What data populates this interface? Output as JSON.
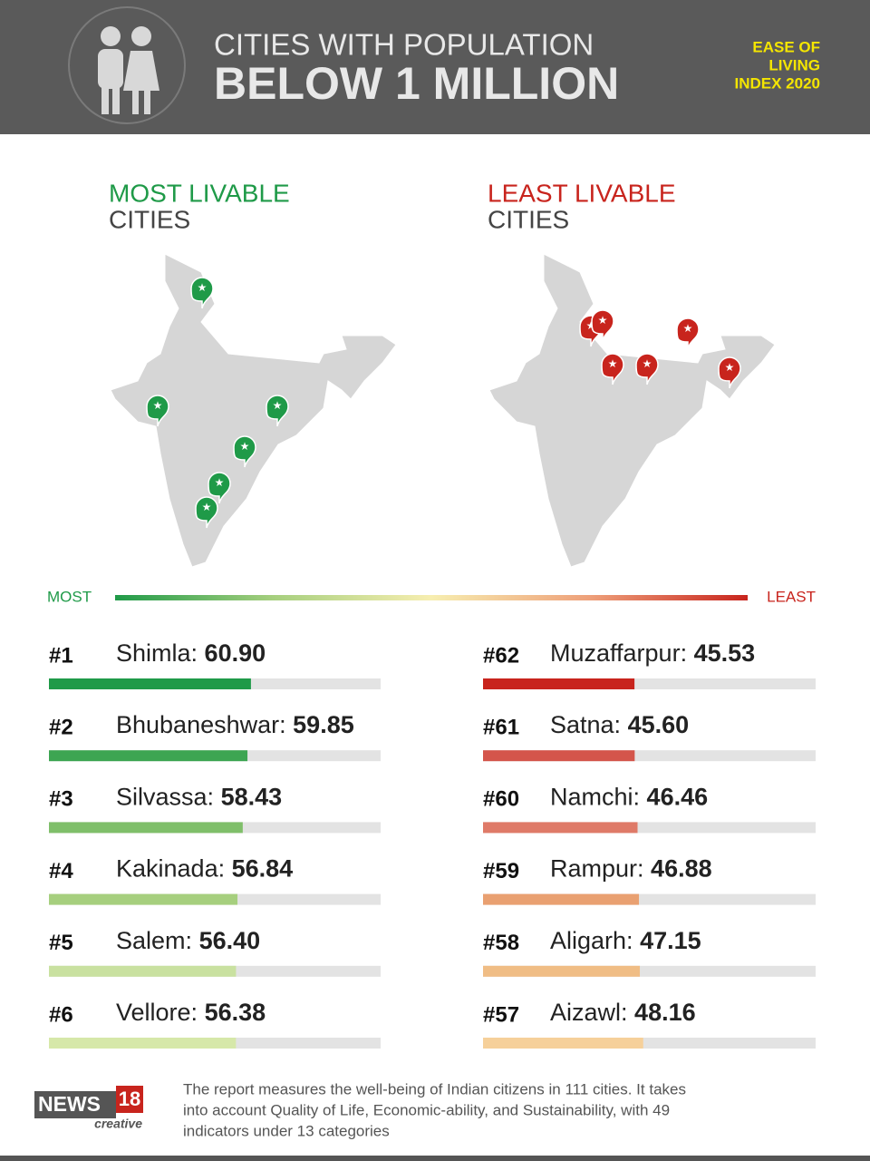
{
  "header": {
    "title_line1": "CITIES WITH POPULATION",
    "title_line2": "BELOW 1 MILLION",
    "badge": [
      "EASE OF",
      "LIVING",
      "INDEX 2020"
    ]
  },
  "most_section": {
    "heading": "MOST LIVABLE",
    "subheading": "CITIES"
  },
  "least_section": {
    "heading": "LEAST LIVABLE",
    "subheading": "CITIES"
  },
  "scale_legend": {
    "left": "MOST",
    "right": "LEAST"
  },
  "chart_data": [
    {
      "type": "bar",
      "ranks": [
        "#1",
        "#2",
        "#3",
        "#4",
        "#5",
        "#6"
      ],
      "categories": [
        "Shimla:",
        "Bhubaneshwar:",
        "Silvassa:",
        "Kakinada:",
        "Salem:",
        "Vellore:"
      ],
      "values": [
        60.9,
        59.85,
        58.43,
        56.84,
        56.4,
        56.38
      ],
      "value_labels": [
        "60.90",
        "59.85",
        "58.43",
        "56.84",
        "56.40",
        "56.38"
      ],
      "colors": [
        "#1f9a48",
        "#3da552",
        "#7fbf6a",
        "#a6cf7e",
        "#c9e1a0",
        "#d6e8a9"
      ],
      "xlim": [
        0,
        100
      ]
    },
    {
      "type": "bar",
      "ranks": [
        "#62",
        "#61",
        "#60",
        "#59",
        "#58",
        "#57"
      ],
      "categories": [
        "Muzaffarpur:",
        "Satna:",
        "Namchi:",
        "Rampur:",
        "Aligarh:",
        "Aizawl:"
      ],
      "values": [
        45.53,
        45.6,
        46.46,
        46.88,
        47.15,
        48.16
      ],
      "value_labels": [
        "45.53",
        "45.60",
        "46.46",
        "46.88",
        "47.15",
        "48.16"
      ],
      "colors": [
        "#c8241d",
        "#d4554b",
        "#df7a68",
        "#e9a071",
        "#f0bd85",
        "#f6d09a"
      ],
      "xlim": [
        0,
        100
      ]
    }
  ],
  "footer": {
    "logo_word": "NEWS",
    "logo_number": "18",
    "logo_sub": "creative",
    "note_lines": [
      "The report measures the well-being of Indian citizens in 111 cities. It takes",
      "into account Quality of Life, Economic-ability, and Sustainability, with 49",
      "indicators under 13 categories"
    ]
  }
}
